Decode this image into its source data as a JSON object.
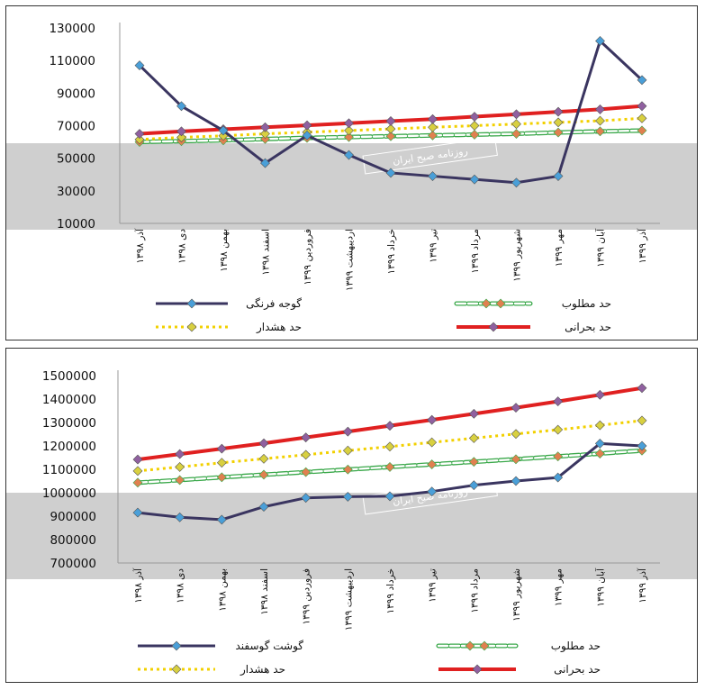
{
  "chart_data": [
    {
      "type": "line",
      "categories": [
        "آذر ۱۳۹۸",
        "دی ۱۳۹۸",
        "بهمن ۱۳۹۸",
        "اسفند ۱۳۹۸",
        "فروردین ۱۳۹۹",
        "اردیبهشت ۱۳۹۹",
        "خرداد ۱۳۹۹",
        "تیر ۱۳۹۹",
        "مرداد ۱۳۹۹",
        "شهریور ۱۳۹۹",
        "مهر ۱۳۹۹",
        "آبان ۱۳۹۹",
        "آذر ۱۳۹۹"
      ],
      "yticks": [
        10000,
        30000,
        50000,
        70000,
        90000,
        110000,
        130000
      ],
      "ylim": [
        10000,
        130000
      ],
      "series": [
        {
          "name": "گوجه فرنگی",
          "color": "#3a3560",
          "marker": "#4a9fd8",
          "style": "solid",
          "values": [
            107000,
            82000,
            67000,
            47000,
            64000,
            52000,
            41000,
            39000,
            37000,
            35000,
            39000,
            122000,
            98000
          ]
        },
        {
          "name": "حد مطلوب",
          "color": "#3aa84a",
          "marker": "#e08050",
          "style": "hollow",
          "values": [
            60000,
            60500,
            61000,
            61800,
            62500,
            63000,
            63500,
            64000,
            64500,
            65000,
            65800,
            66500,
            67000
          ]
        },
        {
          "name": "حد هشدار",
          "color": "#f2d000",
          "marker": "#d8d040",
          "style": "dotted",
          "values": [
            61500,
            62800,
            63800,
            65000,
            66000,
            67000,
            68000,
            69000,
            70000,
            71000,
            72000,
            73000,
            74500
          ]
        },
        {
          "name": "حد بحرانی",
          "color": "#e02020",
          "marker": "#9060a0",
          "style": "thick",
          "values": [
            65000,
            66500,
            67800,
            69000,
            70200,
            71500,
            72800,
            74000,
            75500,
            77000,
            78500,
            80000,
            82000
          ]
        }
      ],
      "watermark": "روزنامه صبح ایران"
    },
    {
      "type": "line",
      "categories": [
        "آذر ۱۳۹۸",
        "دی ۱۳۹۸",
        "بهمن ۱۳۹۸",
        "اسفند ۱۳۹۸",
        "فروردین ۱۳۹۹",
        "اردیبهشت ۱۳۹۹",
        "خرداد ۱۳۹۹",
        "تیر ۱۳۹۹",
        "مرداد ۱۳۹۹",
        "شهریور ۱۳۹۹",
        "مهر ۱۳۹۹",
        "آبان ۱۳۹۹",
        "آذر ۱۳۹۹"
      ],
      "yticks": [
        700000,
        800000,
        900000,
        1000000,
        1100000,
        1200000,
        1300000,
        1400000,
        1500000
      ],
      "ylim": [
        700000,
        1500000
      ],
      "series": [
        {
          "name": "گوشت گوسفند",
          "color": "#3a3560",
          "marker": "#4a9fd8",
          "style": "solid",
          "values": [
            915000,
            895000,
            885000,
            940000,
            978000,
            983000,
            985000,
            1005000,
            1032000,
            1050000,
            1065000,
            1210000,
            1200000
          ]
        },
        {
          "name": "حد مطلوب",
          "color": "#3aa84a",
          "marker": "#e08050",
          "style": "hollow",
          "values": [
            1043000,
            1054000,
            1066000,
            1077000,
            1088000,
            1099000,
            1110000,
            1121000,
            1132000,
            1143000,
            1155000,
            1167000,
            1180000
          ]
        },
        {
          "name": "حد هشدار",
          "color": "#f2d000",
          "marker": "#d8d040",
          "style": "dotted",
          "values": [
            1093000,
            1110000,
            1128000,
            1145000,
            1162000,
            1180000,
            1197000,
            1215000,
            1233000,
            1251000,
            1269000,
            1288000,
            1308000
          ]
        },
        {
          "name": "حد بحرانی",
          "color": "#e02020",
          "marker": "#9060a0",
          "style": "thick",
          "values": [
            1142000,
            1165000,
            1188000,
            1211000,
            1236000,
            1261000,
            1286000,
            1311000,
            1337000,
            1363000,
            1390000,
            1418000,
            1447000
          ]
        }
      ],
      "watermark": "روزنامه صبح ایران"
    }
  ]
}
